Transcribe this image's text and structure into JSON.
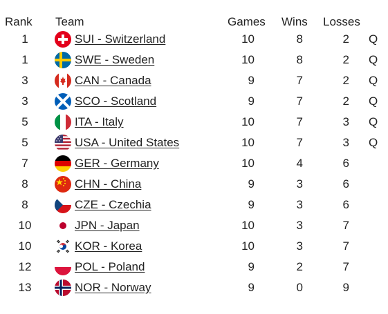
{
  "headers": {
    "rank": "Rank",
    "team": "Team",
    "games": "Games",
    "wins": "Wins",
    "losses": "Losses"
  },
  "rows": [
    {
      "rank": "1",
      "code": "sui",
      "team": "SUI - Switzerland",
      "games": "10",
      "wins": "8",
      "losses": "2",
      "q": "Q"
    },
    {
      "rank": "1",
      "code": "swe",
      "team": "SWE - Sweden",
      "games": "10",
      "wins": "8",
      "losses": "2",
      "q": "Q"
    },
    {
      "rank": "3",
      "code": "can",
      "team": "CAN - Canada",
      "games": "9",
      "wins": "7",
      "losses": "2",
      "q": "Q"
    },
    {
      "rank": "3",
      "code": "sco",
      "team": "SCO - Scotland",
      "games": "9",
      "wins": "7",
      "losses": "2",
      "q": "Q"
    },
    {
      "rank": "5",
      "code": "ita",
      "team": "ITA - Italy",
      "games": "10",
      "wins": "7",
      "losses": "3",
      "q": "Q"
    },
    {
      "rank": "5",
      "code": "usa",
      "team": "USA - United States",
      "games": "10",
      "wins": "7",
      "losses": "3",
      "q": "Q"
    },
    {
      "rank": "7",
      "code": "ger",
      "team": "GER - Germany",
      "games": "10",
      "wins": "4",
      "losses": "6",
      "q": ""
    },
    {
      "rank": "8",
      "code": "chn",
      "team": "CHN - China",
      "games": "9",
      "wins": "3",
      "losses": "6",
      "q": ""
    },
    {
      "rank": "8",
      "code": "cze",
      "team": "CZE - Czechia",
      "games": "9",
      "wins": "3",
      "losses": "6",
      "q": ""
    },
    {
      "rank": "10",
      "code": "jpn",
      "team": "JPN - Japan",
      "games": "10",
      "wins": "3",
      "losses": "7",
      "q": ""
    },
    {
      "rank": "10",
      "code": "kor",
      "team": "KOR - Korea",
      "games": "10",
      "wins": "3",
      "losses": "7",
      "q": ""
    },
    {
      "rank": "12",
      "code": "pol",
      "team": "POL - Poland",
      "games": "9",
      "wins": "2",
      "losses": "7",
      "q": ""
    },
    {
      "rank": "13",
      "code": "nor",
      "team": "NOR - Norway",
      "games": "9",
      "wins": "0",
      "losses": "9",
      "q": ""
    }
  ]
}
